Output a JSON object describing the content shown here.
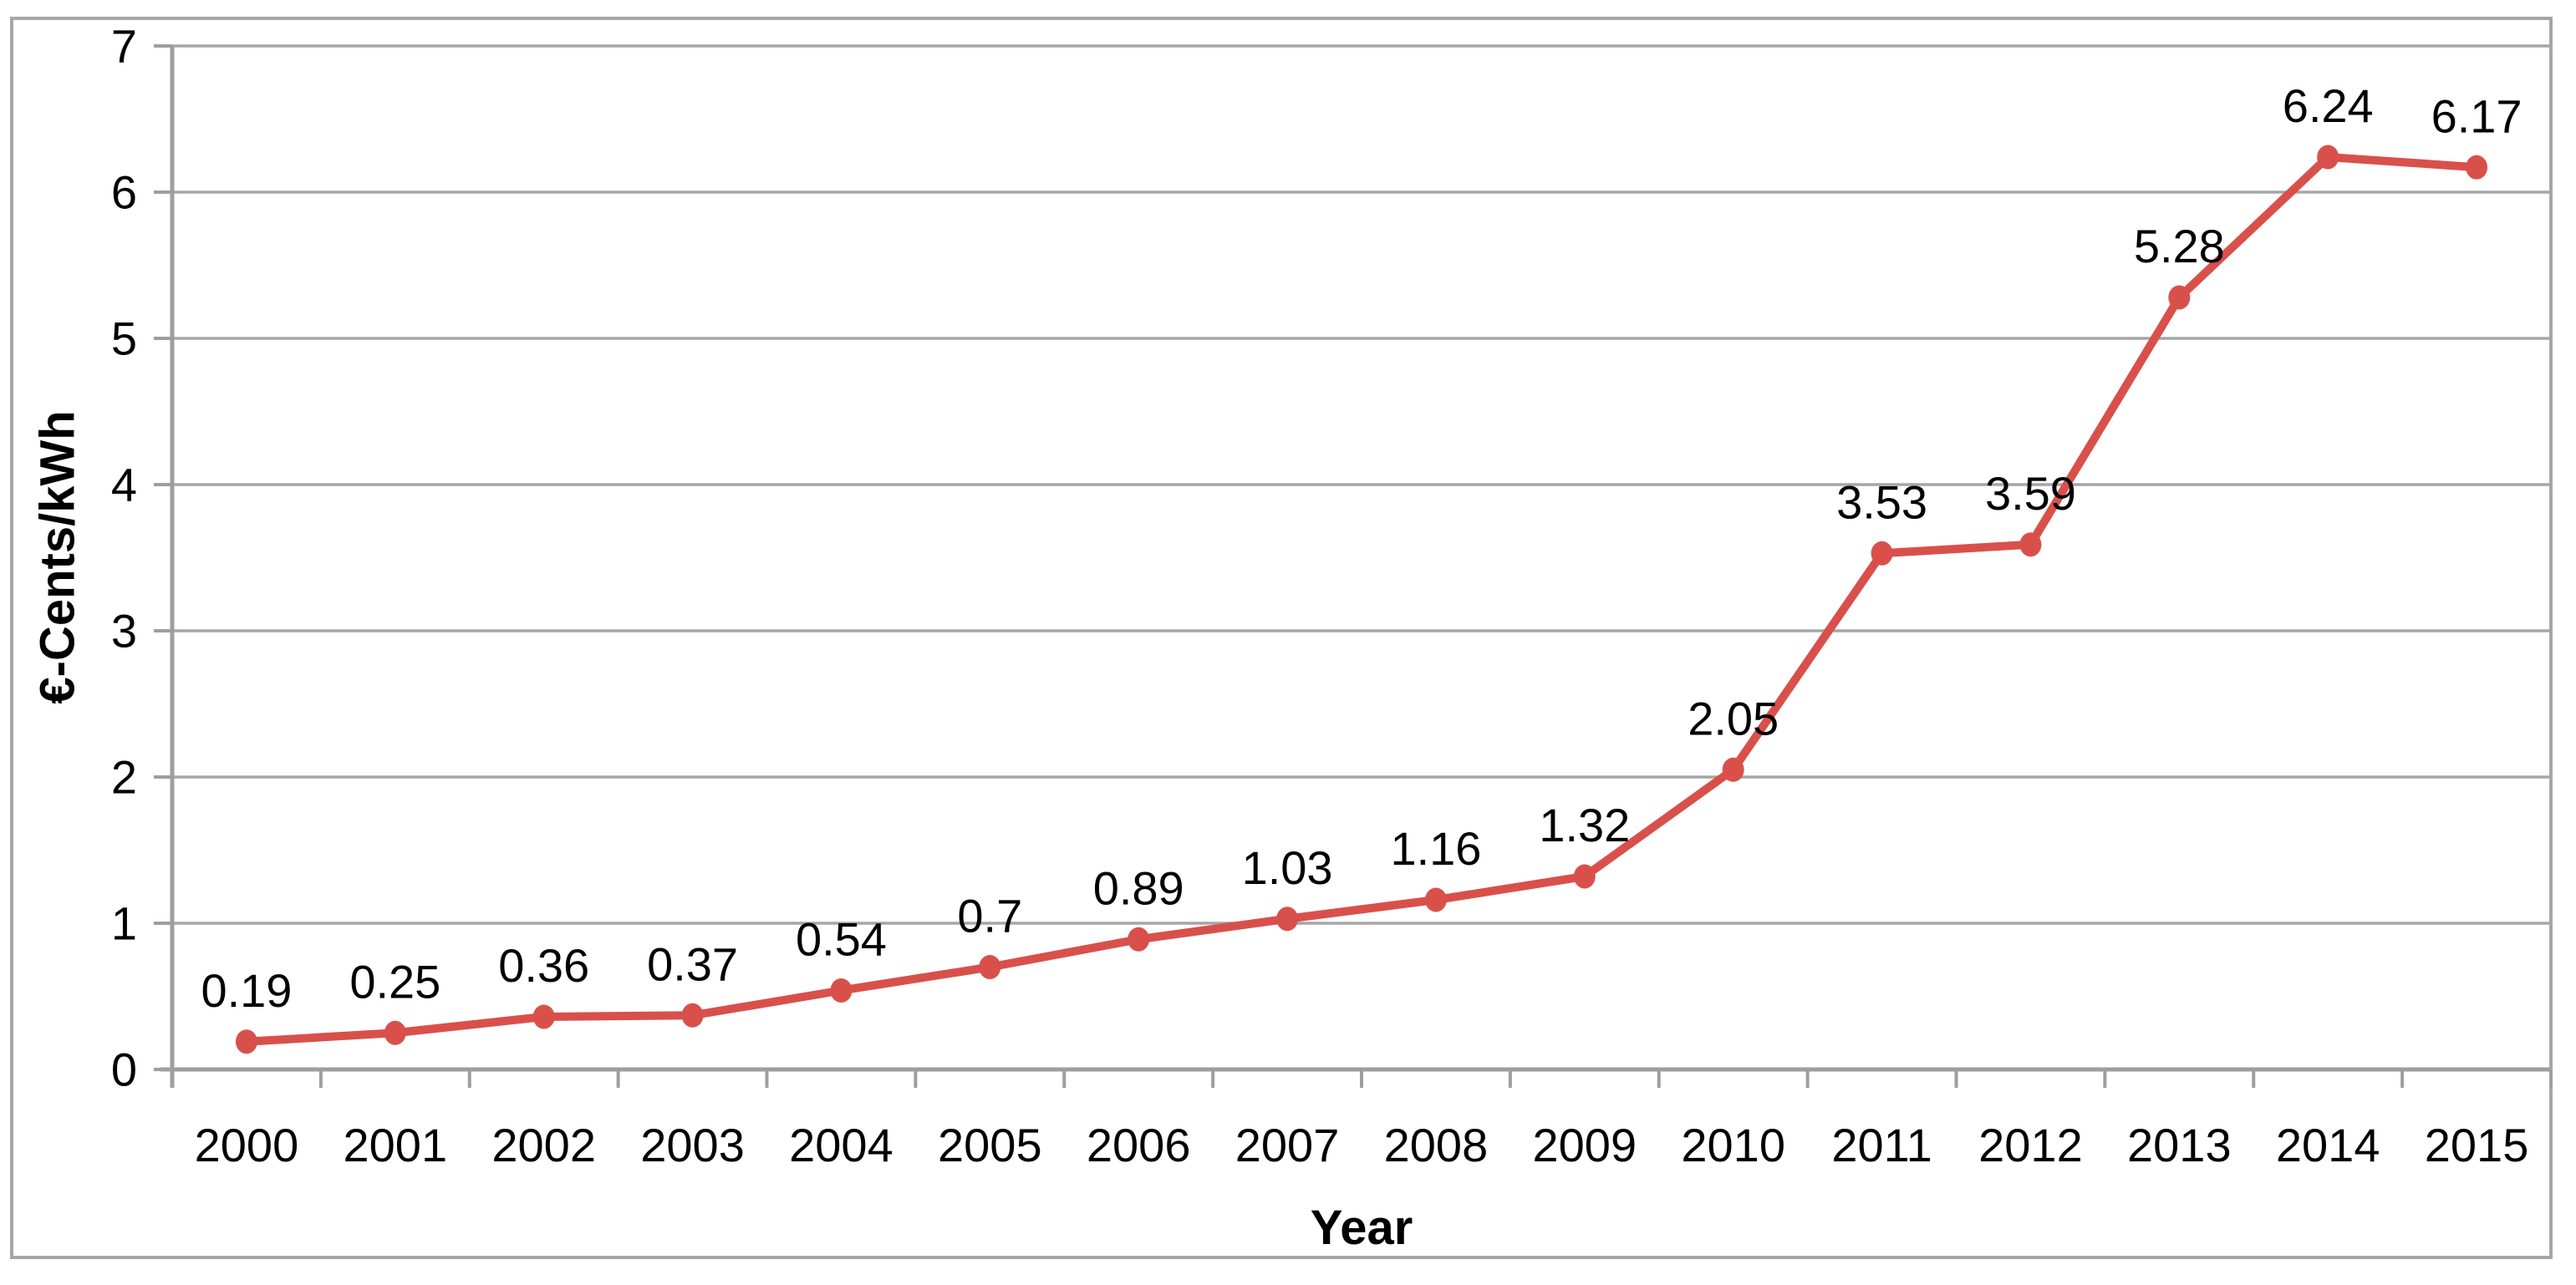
{
  "chart_data": {
    "type": "line",
    "title": "",
    "xlabel": "Year",
    "ylabel": "€-Cents/kWh",
    "categories": [
      "2000",
      "2001",
      "2002",
      "2003",
      "2004",
      "2005",
      "2006",
      "2007",
      "2008",
      "2009",
      "2010",
      "2011",
      "2012",
      "2013",
      "2014",
      "2015"
    ],
    "values": [
      0.19,
      0.25,
      0.36,
      0.37,
      0.54,
      0.7,
      0.89,
      1.03,
      1.16,
      1.32,
      2.05,
      3.53,
      3.59,
      5.28,
      6.24,
      6.17
    ],
    "data_labels": [
      "0.19",
      "0.25",
      "0.36",
      "0.37",
      "0.54",
      "0.7",
      "0.89",
      "1.03",
      "1.16",
      "1.32",
      "2.05",
      "3.53",
      "3.59",
      "5.28",
      "6.24",
      "6.17"
    ],
    "ylim": [
      0,
      7
    ],
    "yticks": [
      "0",
      "1",
      "2",
      "3",
      "4",
      "5",
      "6",
      "7"
    ],
    "grid": true,
    "legend": "none",
    "data_label_position": "above",
    "colors": {
      "line": "#d9504b",
      "marker": "#d9504b",
      "gridline": "#a6a6a6",
      "axis": "#9e9e9e",
      "frame": "#a6a6a6",
      "text": "#000000",
      "background": "#ffffff"
    }
  }
}
